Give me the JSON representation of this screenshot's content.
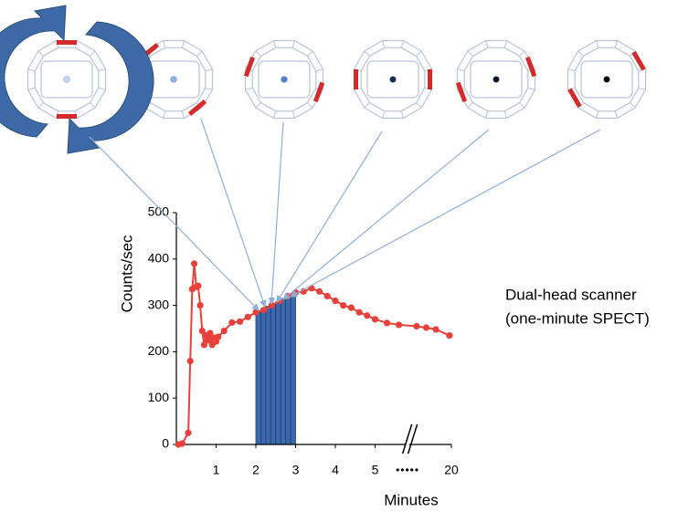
{
  "chart_data": {
    "type": "line",
    "y_label": "Counts/sec",
    "x_label": "Minutes",
    "annotation": [
      "Dual-head scanner",
      "(one-minute SPECT)"
    ],
    "ylim": [
      0,
      500
    ],
    "yticks": [
      0,
      100,
      200,
      300,
      400,
      500
    ],
    "xlim": [
      0,
      20
    ],
    "xticks": [
      1,
      2,
      3,
      4,
      5,
      20
    ],
    "xbreak": [
      5.6,
      19
    ],
    "xbreak_label": "•••••",
    "line": {
      "color": "#e8403a",
      "x": [
        0.05,
        0.15,
        0.3,
        0.35,
        0.4,
        0.45,
        0.5,
        0.55,
        0.6,
        0.65,
        0.7,
        0.75,
        0.8,
        0.85,
        0.9,
        0.95,
        1.0,
        1.05,
        1.2,
        1.4,
        1.6,
        1.8,
        2.0,
        2.2,
        2.4,
        2.6,
        2.8,
        3.0,
        3.2,
        3.4,
        3.6,
        3.8,
        4.0,
        4.2,
        4.4,
        4.6,
        4.8,
        5.0,
        5.3,
        5.6,
        19.1,
        19.35,
        19.6,
        19.95
      ],
      "values": [
        0,
        2,
        25,
        180,
        335,
        390,
        340,
        342,
        300,
        245,
        215,
        235,
        225,
        240,
        215,
        230,
        222,
        232,
        245,
        263,
        265,
        275,
        285,
        290,
        300,
        310,
        320,
        328,
        330,
        337,
        330,
        320,
        310,
        300,
        295,
        285,
        278,
        270,
        262,
        258,
        255,
        252,
        248,
        235
      ]
    },
    "bars": {
      "color": "#3c68ad",
      "bins": [
        2,
        2.125,
        2.25,
        2.375,
        2.5,
        2.625,
        2.75,
        2.875,
        3
      ],
      "values": [
        288,
        292,
        298,
        303,
        308,
        313,
        317,
        322
      ]
    }
  }
}
